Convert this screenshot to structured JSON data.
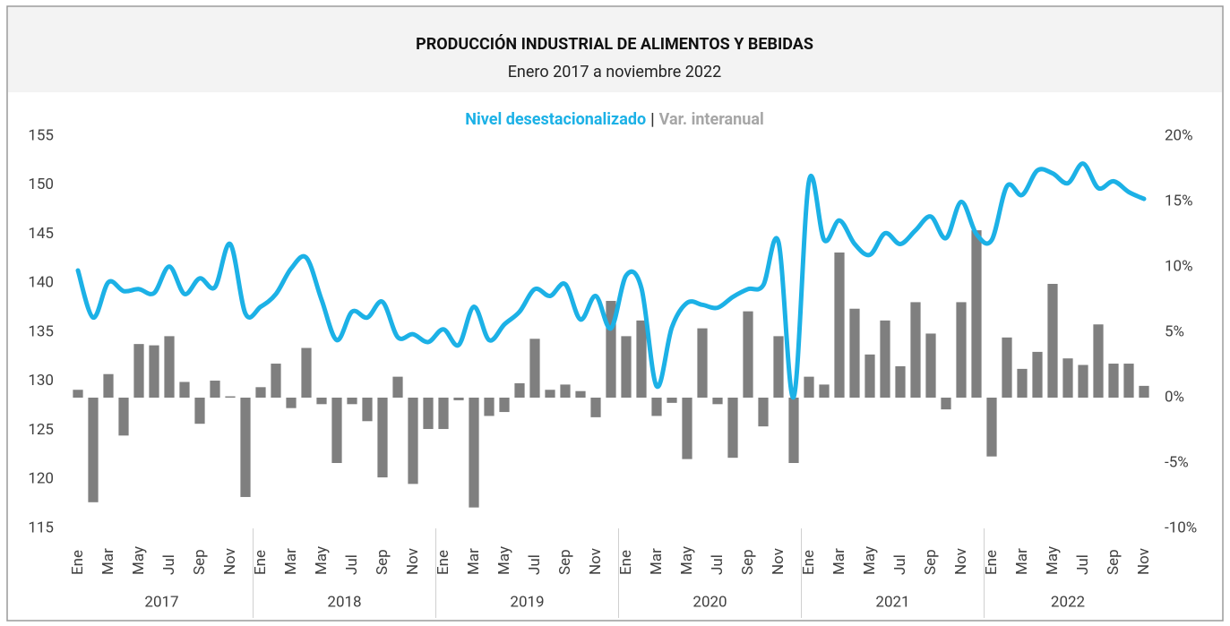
{
  "chart_data": {
    "type": "bar_line",
    "title": "PRODUCCIÓN INDUSTRIAL DE ALIMENTOS Y BEBIDAS",
    "subtitle": "Enero 2017 a noviembre 2022",
    "legend_separator": "|",
    "categories": [
      "Ene",
      null,
      "Mar",
      null,
      "May",
      null,
      "Jul",
      null,
      "Sep",
      null,
      "Nov",
      null,
      "Ene",
      null,
      "Mar",
      null,
      "May",
      null,
      "Jul",
      null,
      "Sep",
      null,
      "Nov",
      null,
      "Ene",
      null,
      "Mar",
      null,
      "May",
      null,
      "Jul",
      null,
      "Sep",
      null,
      "Nov",
      null,
      "Ene",
      null,
      "Mar",
      null,
      "May",
      null,
      "Jul",
      null,
      "Sep",
      null,
      "Nov",
      null,
      "Ene",
      null,
      "Mar",
      null,
      "May",
      null,
      "Jul",
      null,
      "Sep",
      null,
      "Nov",
      null,
      "Ene",
      null,
      "Mar",
      null,
      "May",
      null,
      "Jul",
      null,
      "Sep",
      null,
      "Nov"
    ],
    "x_groups": [
      "2017",
      "2018",
      "2019",
      "2020",
      "2021",
      "2022"
    ],
    "series": [
      {
        "name": "Nivel desestacionalizado",
        "type": "line",
        "color": "#1cb1e6",
        "axis": "y",
        "values": [
          141.3,
          136.5,
          140.1,
          139.2,
          139.4,
          139.0,
          141.7,
          138.9,
          140.5,
          139.6,
          144.0,
          136.9,
          137.6,
          138.9,
          141.5,
          142.6,
          138.3,
          134.2,
          137.1,
          136.5,
          138.1,
          134.5,
          134.8,
          134.0,
          135.3,
          133.7,
          137.6,
          134.2,
          135.8,
          137.1,
          139.4,
          138.7,
          139.9,
          136.3,
          138.7,
          135.4,
          140.8,
          139.5,
          129.5,
          135.5,
          138.0,
          137.8,
          137.5,
          138.6,
          139.4,
          139.8,
          144.2,
          128.4,
          150.4,
          144.4,
          146.4,
          144.0,
          142.9,
          145.1,
          144.0,
          145.4,
          146.8,
          144.6,
          148.3,
          145.0,
          144.4,
          149.9,
          149.0,
          151.5,
          151.2,
          150.2,
          152.2,
          149.7,
          150.4,
          149.3,
          148.6
        ]
      },
      {
        "name": "Var. interanual",
        "type": "bar",
        "color": "#7f7f7f",
        "axis": "y2",
        "values": [
          0.6,
          -8.0,
          1.8,
          -2.9,
          4.1,
          4.0,
          4.7,
          1.2,
          -2.0,
          1.3,
          0.1,
          -7.6,
          0.8,
          2.6,
          -0.8,
          3.8,
          -0.5,
          -5.0,
          -0.5,
          -1.8,
          -6.1,
          1.6,
          -6.6,
          -2.4,
          -2.4,
          -0.2,
          -8.4,
          -1.4,
          -1.1,
          1.1,
          4.5,
          0.6,
          1.0,
          0.5,
          -1.5,
          7.4,
          4.7,
          5.9,
          -1.4,
          -0.4,
          -4.7,
          5.3,
          -0.5,
          -4.6,
          6.6,
          -2.2,
          4.7,
          -5.0,
          1.6,
          1.0,
          11.1,
          6.8,
          3.3,
          5.9,
          2.4,
          7.3,
          4.9,
          -0.9,
          7.3,
          12.8,
          -4.5,
          4.6,
          2.2,
          3.5,
          8.7,
          3.0,
          2.5,
          5.6,
          2.6,
          2.6,
          0.9
        ]
      }
    ],
    "ylim": [
      115,
      155
    ],
    "yticks": [
      115,
      120,
      125,
      130,
      135,
      140,
      145,
      150,
      155
    ],
    "y2lim": [
      -10,
      20
    ],
    "y2ticks": [
      {
        "value": -10,
        "label": "-10%"
      },
      {
        "value": -5,
        "label": "-5%"
      },
      {
        "value": 0,
        "label": "0%"
      },
      {
        "value": 5,
        "label": "5%"
      },
      {
        "value": 10,
        "label": "10%"
      },
      {
        "value": 15,
        "label": "15%"
      },
      {
        "value": 20,
        "label": "20%"
      }
    ],
    "grid": false
  }
}
